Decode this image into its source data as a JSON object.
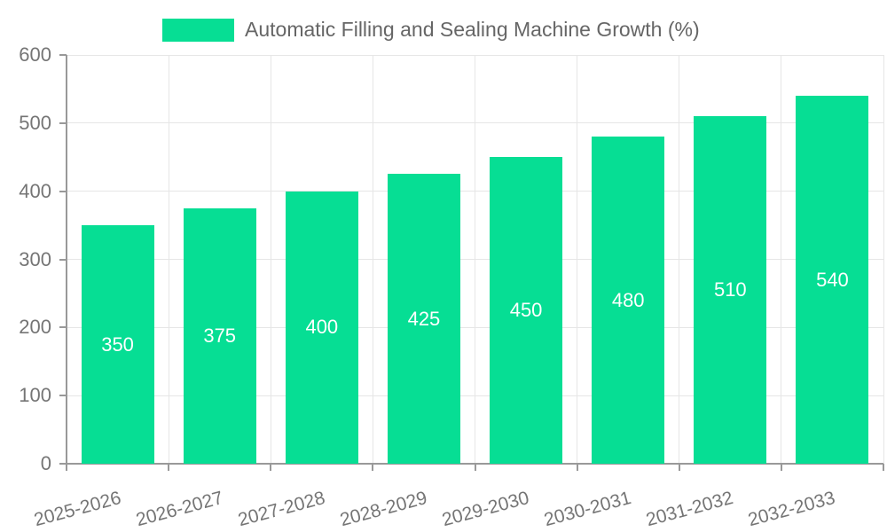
{
  "legend": {
    "label": "Automatic Filling and Sealing Machine Growth (%)"
  },
  "chart_data": {
    "type": "bar",
    "title": "Automatic Filling and Sealing Machine Growth (%)",
    "categories": [
      "2025-2026",
      "2026-2027",
      "2027-2028",
      "2028-2029",
      "2029-2030",
      "2030-2031",
      "2031-2032",
      "2032-2033"
    ],
    "values": [
      350,
      375,
      400,
      425,
      450,
      480,
      510,
      540
    ],
    "xlabel": "",
    "ylabel": "",
    "ylim": [
      0,
      600
    ],
    "yticks": [
      0,
      100,
      200,
      300,
      400,
      500,
      600
    ],
    "grid": true,
    "legend_position": "top",
    "bar_value_labels_inside": true
  },
  "colors": {
    "bar": "#06DE94",
    "grid": "#e6e6e6",
    "axis": "#999999",
    "tick_text": "#757575",
    "legend_text": "#666666",
    "bar_label_text": "#ffffff",
    "background": "#ffffff"
  }
}
